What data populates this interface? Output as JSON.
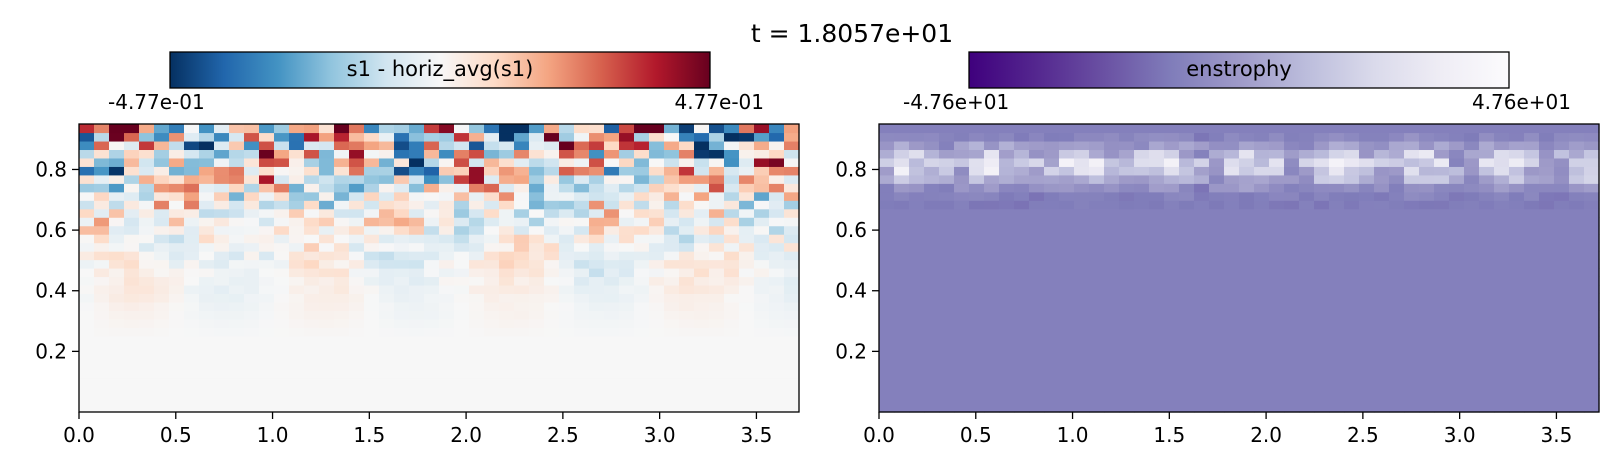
{
  "figure": {
    "title": "t = 1.8057e+01"
  },
  "chart_data": [
    {
      "type": "heatmap",
      "colormap": "RdBu_r",
      "colorbar_label": "s1 - horiz_avg(s1)",
      "vmin_label": "-4.77e-01",
      "vmax_label": "4.77e-01",
      "vmin": -0.477,
      "vmax": 0.477,
      "xlim": [
        0,
        3.72
      ],
      "ylim": [
        0,
        0.95
      ],
      "xticks": [
        "0.0",
        "0.5",
        "1.0",
        "1.5",
        "2.0",
        "2.5",
        "3.0",
        "3.5"
      ],
      "yticks": [
        "0.2",
        "0.4",
        "0.6",
        "0.8"
      ],
      "grid": false,
      "colors": [
        "#053061",
        "#2166ac",
        "#4393c3",
        "#92c5de",
        "#d1e5f0",
        "#f7f7f7",
        "#fddbc7",
        "#f4a582",
        "#d6604d",
        "#b2182b",
        "#67001f"
      ]
    },
    {
      "type": "heatmap",
      "colormap": "Purples_r",
      "colorbar_label": "enstrophy",
      "vmin_label": "-4.76e+01",
      "vmax_label": "4.76e+01",
      "vmin": -47.6,
      "vmax": 47.6,
      "xlim": [
        0,
        3.72
      ],
      "ylim": [
        0,
        0.95
      ],
      "xticks": [
        "0.0",
        "0.5",
        "1.0",
        "1.5",
        "2.0",
        "2.5",
        "3.0",
        "3.5"
      ],
      "yticks": [
        "0.2",
        "0.4",
        "0.6",
        "0.8"
      ],
      "grid": false,
      "colors": [
        "#3f007d",
        "#54278f",
        "#6a51a3",
        "#807dba",
        "#9e9ac8",
        "#bcbddc",
        "#dadaeb",
        "#efedf5",
        "#fcfbfd"
      ]
    }
  ]
}
